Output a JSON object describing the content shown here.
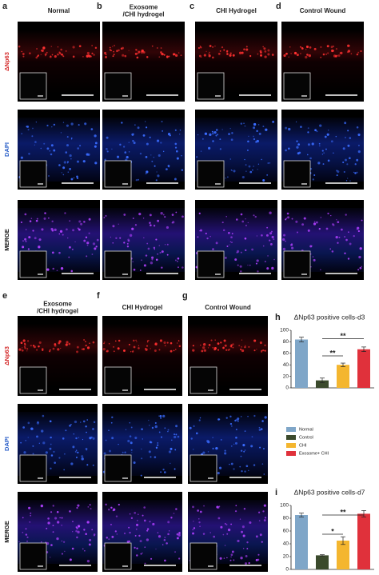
{
  "top": {
    "columns": [
      {
        "letter": "a",
        "header": [
          "Normal"
        ]
      },
      {
        "letter": "b",
        "header": [
          "Exosome",
          "/CHI hydrogel"
        ]
      },
      {
        "letter": "c",
        "header": [
          "CHI Hydrogel"
        ]
      },
      {
        "letter": "d",
        "header": [
          "Control Wound"
        ]
      }
    ],
    "rows": [
      "ΔNp63",
      "DAPI",
      "MERGE"
    ]
  },
  "bottom": {
    "columns": [
      {
        "letter": "e",
        "header": [
          "Exosome",
          "/CHI hydrogel"
        ]
      },
      {
        "letter": "f",
        "header": [
          "CHI Hydrogel"
        ]
      },
      {
        "letter": "g",
        "header": [
          "Control Wound"
        ]
      }
    ],
    "rows": [
      "ΔNp63",
      "DAPI",
      "MERGE"
    ]
  },
  "chart_data": [
    {
      "type": "bar",
      "letter": "h",
      "title": "ΔNp63 positive cells-d3",
      "categories": [
        "Normal",
        "Control",
        "CHI",
        "Exosome+ CHI"
      ],
      "values": [
        84,
        13,
        40,
        67
      ],
      "errors": [
        4,
        4,
        3,
        4
      ],
      "colors": [
        "#7fa6c8",
        "#3b4a2c",
        "#f4b62f",
        "#e0313b"
      ],
      "ylim": [
        0,
        100
      ],
      "yticks": [
        0,
        20,
        40,
        60,
        80,
        100
      ],
      "annotations": [
        "**",
        "**"
      ]
    },
    {
      "type": "bar",
      "letter": "i",
      "title": "ΔNp63 positive cells-d7",
      "values": [
        85,
        22,
        45,
        87
      ],
      "errors": [
        3,
        1,
        6,
        5
      ],
      "colors": [
        "#7fa6c8",
        "#3b4a2c",
        "#f4b62f",
        "#e0313b"
      ],
      "ylim": [
        0,
        100
      ],
      "yticks": [
        0,
        20,
        40,
        60,
        80,
        100
      ],
      "annotations": [
        "*",
        "**"
      ]
    }
  ]
}
